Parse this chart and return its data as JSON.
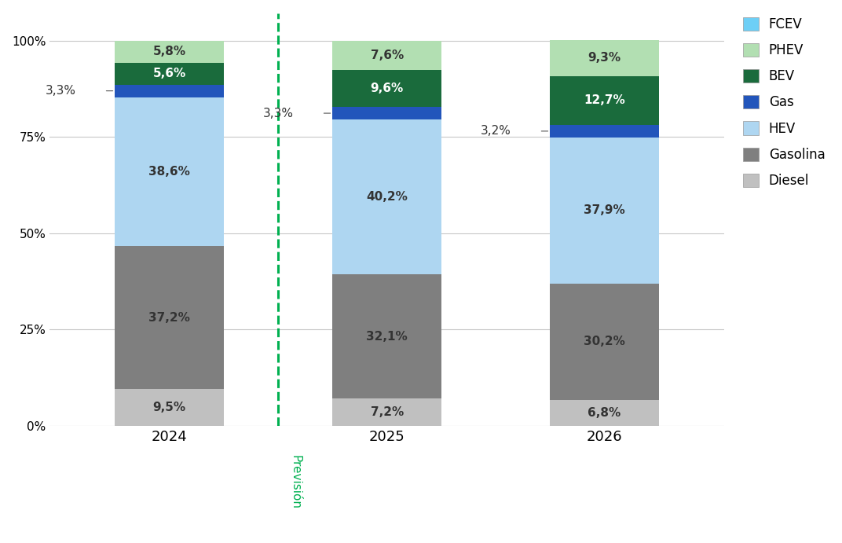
{
  "years": [
    "2024",
    "2025",
    "2026"
  ],
  "categories": [
    "Diesel",
    "Gasolina",
    "HEV",
    "Gas",
    "BEV",
    "PHEV",
    "FCEV"
  ],
  "colors": [
    "#c0c0c0",
    "#7f7f7f",
    "#aed6f1",
    "#2255bb",
    "#1a6b3c",
    "#b2dfb2",
    "#6dcff6"
  ],
  "values": {
    "2024": [
      9.5,
      37.2,
      38.6,
      3.3,
      5.6,
      5.8,
      0.0
    ],
    "2025": [
      7.2,
      32.1,
      40.2,
      3.3,
      9.6,
      7.6,
      0.0
    ],
    "2026": [
      6.8,
      30.2,
      37.9,
      3.2,
      12.7,
      9.3,
      0.0
    ]
  },
  "gas_labels": [
    "3,3%",
    "3,3%",
    "3,2%"
  ],
  "label_text_colors": {
    "Diesel": "#333333",
    "Gasolina": "#333333",
    "HEV": "#333333",
    "Gas": "#ffffff",
    "BEV": "#ffffff",
    "PHEV": "#333333",
    "FCEV": "#333333"
  },
  "dashed_line_color": "#00b050",
  "prevision_label": "Previsión",
  "bar_width": 0.5,
  "background_color": "#ffffff",
  "grid_color": "#c8c8c8",
  "yticks": [
    0,
    25,
    50,
    75,
    100
  ],
  "ytick_labels": [
    "0%",
    "25%",
    "50%",
    "75%",
    "100%"
  ],
  "legend_labels": [
    "FCEV",
    "PHEV",
    "BEV",
    "Gas",
    "HEV",
    "Gasolina",
    "Diesel"
  ],
  "legend_colors": [
    "#6dcff6",
    "#b2dfb2",
    "#1a6b3c",
    "#2255bb",
    "#aed6f1",
    "#7f7f7f",
    "#c0c0c0"
  ]
}
